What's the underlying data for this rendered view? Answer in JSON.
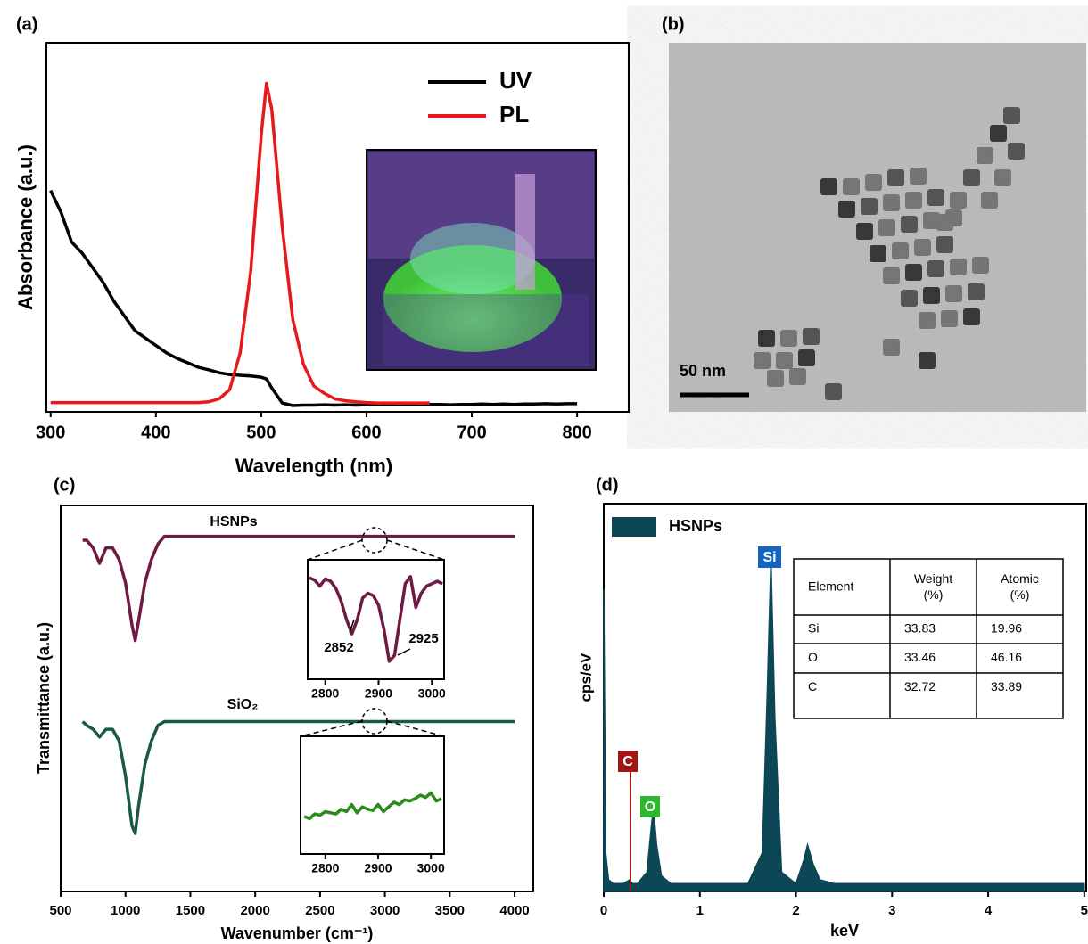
{
  "chart_data": [
    {
      "type": "line",
      "label": "(a)",
      "x_label": "Wavelength (nm)",
      "y_label": "Absorbance (a.u.)",
      "x": [
        300,
        310,
        320,
        330,
        340,
        350,
        360,
        370,
        380,
        390,
        400,
        410,
        420,
        430,
        440,
        450,
        460,
        470,
        480,
        490,
        500,
        505,
        510,
        520,
        530,
        540,
        550,
        560,
        570,
        580,
        590,
        600,
        610,
        620,
        630,
        640,
        650,
        660,
        670,
        680,
        690,
        700,
        710,
        720,
        730,
        740,
        750,
        760,
        770,
        780,
        790,
        800
      ],
      "series": [
        {
          "name": "UV",
          "color": "#000000",
          "values": [
            0.6,
            0.54,
            0.46,
            0.43,
            0.39,
            0.35,
            0.3,
            0.26,
            0.22,
            0.2,
            0.18,
            0.16,
            0.145,
            0.133,
            0.121,
            0.114,
            0.106,
            0.101,
            0.099,
            0.097,
            0.094,
            0.089,
            0.065,
            0.024,
            0.017,
            0.018,
            0.018,
            0.019,
            0.018,
            0.019,
            0.018,
            0.019,
            0.019,
            0.02,
            0.019,
            0.02,
            0.019,
            0.02,
            0.02,
            0.019,
            0.02,
            0.02,
            0.021,
            0.02,
            0.021,
            0.02,
            0.021,
            0.021,
            0.022,
            0.021,
            0.022,
            0.022
          ]
        },
        {
          "name": "PL",
          "color": "#e8191b",
          "values": [
            0.025,
            0.025,
            0.025,
            0.025,
            0.025,
            0.025,
            0.025,
            0.025,
            0.025,
            0.025,
            0.025,
            0.025,
            0.025,
            0.025,
            0.025,
            0.027,
            0.035,
            0.06,
            0.16,
            0.38,
            0.75,
            0.89,
            0.82,
            0.5,
            0.25,
            0.13,
            0.07,
            0.05,
            0.035,
            0.03,
            0.027,
            0.025,
            0.024,
            0.024,
            0.024,
            0.024,
            0.024,
            0.024,
            null,
            null,
            null,
            null,
            null,
            null,
            null,
            null,
            null,
            null,
            null,
            null,
            null,
            null
          ]
        }
      ],
      "xlim": [
        296,
        849
      ],
      "ylim": [
        0,
        1
      ],
      "xticks": [
        300,
        400,
        500,
        600,
        700,
        800
      ],
      "legend": "upper right"
    },
    {
      "type": "line",
      "label": "(c)",
      "x_label": "Wavenumber (cm⁻¹)",
      "y_label": "Transmittance (a.u.)",
      "x": [
        670,
        700,
        750,
        800,
        850,
        900,
        950,
        1000,
        1050,
        1075,
        1100,
        1150,
        1200,
        1250,
        1300,
        1500,
        2000,
        2500,
        3000,
        3500,
        4000
      ],
      "series": [
        {
          "name": "HSNPs",
          "color": "#6e1a42",
          "values": [
            0.91,
            0.91,
            0.89,
            0.85,
            0.89,
            0.89,
            0.86,
            0.8,
            0.69,
            0.65,
            0.7,
            0.8,
            0.86,
            0.9,
            0.92,
            0.92,
            0.92,
            0.92,
            0.92,
            0.92,
            0.92
          ]
        },
        {
          "name": "SiO₂",
          "color": "#1a5a45",
          "values": [
            0.44,
            0.43,
            0.42,
            0.4,
            0.42,
            0.42,
            0.39,
            0.3,
            0.17,
            0.15,
            0.22,
            0.33,
            0.39,
            0.43,
            0.44,
            0.44,
            0.44,
            0.44,
            0.44,
            0.44,
            0.44
          ]
        }
      ],
      "xlim": [
        500,
        4144
      ],
      "ylim": [
        0,
        1
      ],
      "xticks": [
        500,
        1000,
        1500,
        2000,
        2500,
        3000,
        3500,
        4000
      ]
    },
    {
      "type": "line",
      "x": [
        2770,
        2780,
        2790,
        2800,
        2810,
        2820,
        2830,
        2840,
        2850,
        2860,
        2870,
        2880,
        2890,
        2900,
        2910,
        2920,
        2930,
        2940,
        2950,
        2960,
        2970,
        2980,
        2990,
        3000,
        3010,
        3020
      ],
      "series": [
        {
          "color": "#6e1a42",
          "values": [
            0.85,
            0.83,
            0.78,
            0.84,
            0.82,
            0.76,
            0.65,
            0.5,
            0.38,
            0.5,
            0.68,
            0.72,
            0.7,
            0.62,
            0.42,
            0.15,
            0.2,
            0.5,
            0.8,
            0.86,
            0.6,
            0.72,
            0.78,
            0.8,
            0.82,
            0.8
          ]
        }
      ],
      "xlim": [
        2767,
        3023
      ],
      "ylim": [
        0,
        1
      ],
      "xticks": [
        2800,
        2900,
        3000
      ],
      "annotations": [
        "2852",
        "2925"
      ]
    },
    {
      "type": "line",
      "x": [
        2760,
        2770,
        2780,
        2790,
        2800,
        2810,
        2820,
        2830,
        2840,
        2850,
        2860,
        2870,
        2880,
        2890,
        2900,
        2910,
        2920,
        2930,
        2940,
        2950,
        2960,
        2970,
        2980,
        2990,
        3000,
        3010,
        3020
      ],
      "series": [
        {
          "color": "#2a8a1a",
          "values": [
            0.32,
            0.3,
            0.34,
            0.33,
            0.36,
            0.35,
            0.34,
            0.38,
            0.36,
            0.42,
            0.35,
            0.4,
            0.38,
            0.37,
            0.42,
            0.36,
            0.4,
            0.44,
            0.42,
            0.46,
            0.45,
            0.47,
            0.5,
            0.48,
            0.52,
            0.45,
            0.47
          ]
        }
      ],
      "xlim": [
        2753,
        3025
      ],
      "ylim": [
        0,
        1
      ],
      "xticks": [
        2800,
        2900,
        3000
      ]
    },
    {
      "type": "area",
      "label": "(d)",
      "x_label": "keV",
      "y_label": "cps/eV",
      "x": [
        0,
        0.02,
        0.05,
        0.1,
        0.2,
        0.27,
        0.3,
        0.35,
        0.45,
        0.5,
        0.52,
        0.55,
        0.6,
        0.7,
        1,
        1.5,
        1.65,
        1.7,
        1.74,
        1.78,
        1.85,
        2,
        2.08,
        2.12,
        2.18,
        2.25,
        2.4,
        3,
        4,
        5
      ],
      "series": [
        {
          "name": "HSNPs",
          "color": "#0d4756",
          "values": [
            0.78,
            0.1,
            0.03,
            0.02,
            0.02,
            0.03,
            0.02,
            0.02,
            0.05,
            0.18,
            0.21,
            0.12,
            0.04,
            0.02,
            0.02,
            0.02,
            0.1,
            0.5,
            0.86,
            0.45,
            0.05,
            0.02,
            0.08,
            0.12,
            0.07,
            0.03,
            0.02,
            0.02,
            0.02,
            0.02
          ]
        }
      ],
      "xlim": [
        0,
        5.02
      ],
      "ylim": [
        0,
        1
      ],
      "xticks": [
        0,
        1,
        2,
        3,
        4,
        5
      ],
      "legend": "upper left",
      "peak_labels": [
        "C",
        "O",
        "Si"
      ],
      "peak_label_colors": [
        "#a31515",
        "#2db82d",
        "#1565c0"
      ],
      "table": {
        "header": [
          "Element",
          "Weight (%)",
          "Atomic (%)"
        ],
        "rows": [
          [
            "Si",
            "33.83",
            "19.96"
          ],
          [
            "O",
            "33.46",
            "46.16"
          ],
          [
            "C",
            "32.72",
            "33.89"
          ]
        ]
      }
    }
  ],
  "image_panel": {
    "label": "(b)",
    "scale_bar": "50 nm"
  }
}
